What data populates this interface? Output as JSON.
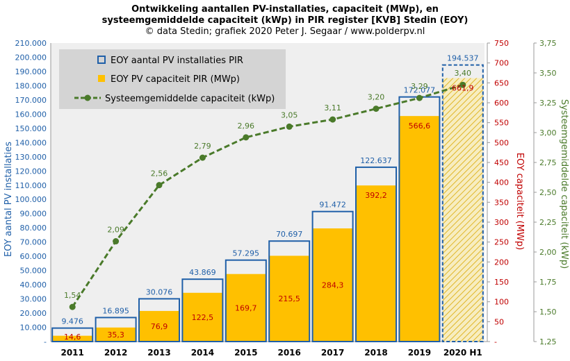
{
  "title_line1": "Ontwikkeling aantallen PV-installaties, capaciteit (MWp), en",
  "title_line2": "systeemgemiddelde capaciteit (kWp) in PIR register [KVB] Stedin (EOY)",
  "subtitle": "© data Stedin; grafiek 2020 Peter J. Segaar / www.polderpv.nl",
  "colors": {
    "installations": "#1f5fa8",
    "capacity": "#ffc000",
    "capacity_label": "#c00000",
    "average": "#4a7a2a",
    "plot_bg": "#efefef",
    "legend_bg": "#d4d4d4"
  },
  "chart_data": {
    "type": "bar",
    "categories": [
      "2011",
      "2012",
      "2013",
      "2014",
      "2015",
      "2016",
      "2017",
      "2018",
      "2019",
      "2020 H1"
    ],
    "series": [
      {
        "name": "EOY aantal PV installaties PIR",
        "axis": "left",
        "values": [
          9476,
          16895,
          30076,
          43869,
          57295,
          70697,
          91472,
          122637,
          172077,
          194537
        ],
        "labels": [
          "9.476",
          "16.895",
          "30.076",
          "43.869",
          "57.295",
          "70.697",
          "91.472",
          "122.637",
          "172.077",
          "194.537"
        ]
      },
      {
        "name": "EOY PV capaciteit PIR (MWp)",
        "axis": "right1",
        "values": [
          14.6,
          35.3,
          76.9,
          122.5,
          169.7,
          215.5,
          284.3,
          392.2,
          566.6,
          661.9
        ],
        "labels": [
          "14,6",
          "35,3",
          "76,9",
          "122,5",
          "169,7",
          "215,5",
          "284,3",
          "392,2",
          "566,6",
          "661,9"
        ]
      },
      {
        "name": "Systeemgemiddelde capaciteit (kWp)",
        "axis": "right2",
        "type": "line",
        "values": [
          1.54,
          2.09,
          2.56,
          2.79,
          2.96,
          3.05,
          3.11,
          3.2,
          3.29,
          3.4
        ],
        "labels": [
          "1,54",
          "2,09",
          "2,56",
          "2,79",
          "2,96",
          "3,05",
          "3,11",
          "3,20",
          "3,29",
          "3,40"
        ]
      }
    ],
    "ylabel_left": "EOY aantal PV installaties",
    "ylabel_right1": "EOY capaciteit (MWp)",
    "ylabel_right2": "Systeemgemiddelde capaciteit (kWp)",
    "ylim_left": [
      0,
      210000
    ],
    "ylim_right1": [
      0,
      750
    ],
    "ylim_right2": [
      1.25,
      3.75
    ],
    "left_ticks": [
      "-",
      "10.000",
      "20.000",
      "30.000",
      "40.000",
      "50.000",
      "60.000",
      "70.000",
      "80.000",
      "90.000",
      "100.000",
      "110.000",
      "120.000",
      "130.000",
      "140.000",
      "150.000",
      "160.000",
      "170.000",
      "180.000",
      "190.000",
      "200.000",
      "210.000"
    ],
    "right1_ticks": [
      "-",
      "50",
      "100",
      "150",
      "200",
      "250",
      "300",
      "350",
      "400",
      "450",
      "500",
      "550",
      "600",
      "650",
      "700",
      "750"
    ],
    "right2_ticks": [
      "1,25",
      "1,50",
      "1,75",
      "2,00",
      "2,25",
      "2,50",
      "2,75",
      "3,00",
      "3,25",
      "3,50",
      "3,75"
    ],
    "grid": false,
    "legend_position": "top-left",
    "last_category_style": "dashed outline, hatched fill"
  }
}
